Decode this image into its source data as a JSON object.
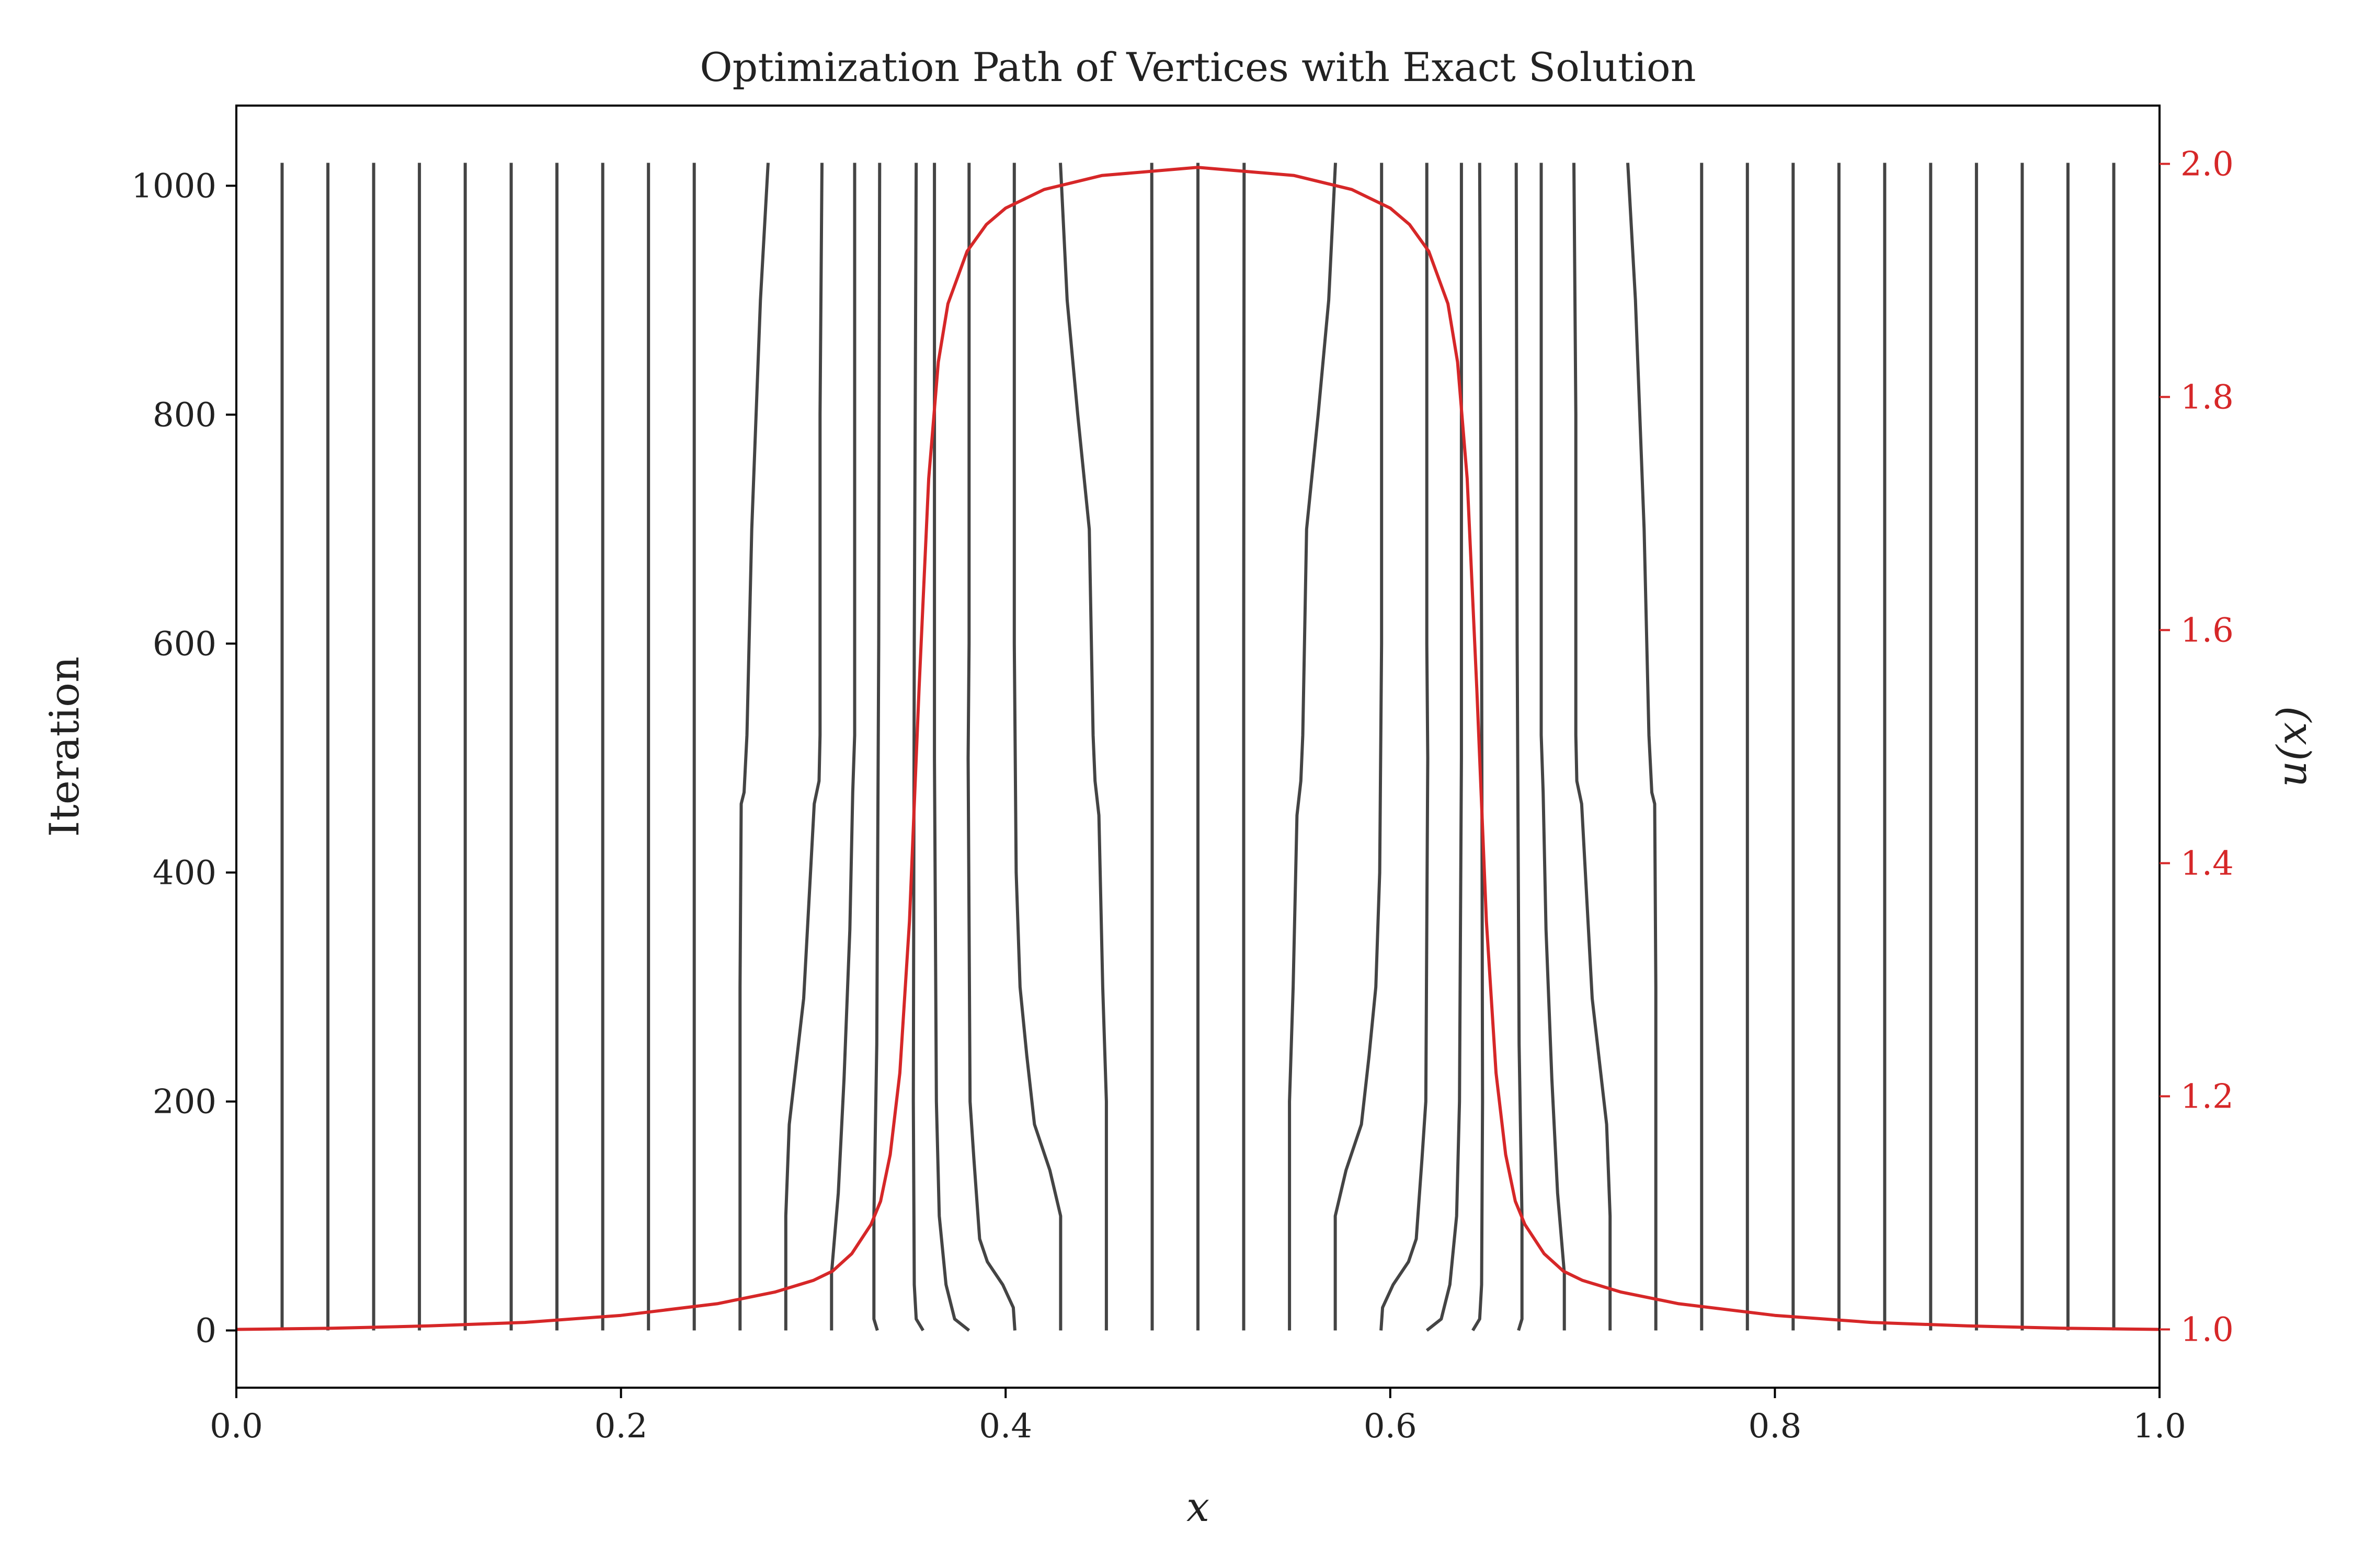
{
  "chart_data": {
    "type": "line",
    "title": "Optimization Path of Vertices with Exact Solution",
    "xlabel": "x",
    "ylabel_left": "Iteration",
    "ylabel_right": "u(x)",
    "xlim": [
      0.0,
      1.0
    ],
    "ylim_left": [
      -50,
      1070
    ],
    "ylim_right": [
      0.95,
      2.05
    ],
    "x_ticks": [
      0.0,
      0.2,
      0.4,
      0.6,
      0.8,
      1.0
    ],
    "x_tick_labels": [
      "0.0",
      "0.2",
      "0.4",
      "0.6",
      "0.8",
      "1.0"
    ],
    "y_ticks_left": [
      0,
      200,
      400,
      600,
      800,
      1000
    ],
    "y_tick_labels_left": [
      "0",
      "200",
      "400",
      "600",
      "800",
      "1000"
    ],
    "y_ticks_right": [
      1.0,
      1.2,
      1.4,
      1.6,
      1.8,
      2.0
    ],
    "y_tick_labels_right": [
      "1.0",
      "1.2",
      "1.4",
      "1.6",
      "1.8",
      "2.0"
    ],
    "grid": false,
    "legend": "none",
    "colors": {
      "vertex_paths": "#444444",
      "exact_solution": "#d62728",
      "axis": "#000000"
    },
    "vertex_paths": [
      {
        "points": [
          [
            0.0238,
            0
          ],
          [
            0.0238,
            1020
          ]
        ]
      },
      {
        "points": [
          [
            0.0476,
            0
          ],
          [
            0.0476,
            1020
          ]
        ]
      },
      {
        "points": [
          [
            0.0714,
            0
          ],
          [
            0.0714,
            1020
          ]
        ]
      },
      {
        "points": [
          [
            0.0952,
            0
          ],
          [
            0.0952,
            1020
          ]
        ]
      },
      {
        "points": [
          [
            0.119,
            0
          ],
          [
            0.119,
            1020
          ]
        ]
      },
      {
        "points": [
          [
            0.1429,
            0
          ],
          [
            0.1429,
            1020
          ]
        ]
      },
      {
        "points": [
          [
            0.1667,
            0
          ],
          [
            0.1667,
            1020
          ]
        ]
      },
      {
        "points": [
          [
            0.1905,
            0
          ],
          [
            0.1905,
            1020
          ]
        ]
      },
      {
        "points": [
          [
            0.2143,
            0
          ],
          [
            0.2143,
            1020
          ]
        ]
      },
      {
        "points": [
          [
            0.2381,
            0
          ],
          [
            0.2381,
            1020
          ]
        ]
      },
      {
        "points": [
          [
            0.2619,
            0
          ],
          [
            0.2619,
            300
          ],
          [
            0.2625,
            460
          ],
          [
            0.264,
            470
          ],
          [
            0.2655,
            520
          ],
          [
            0.268,
            700
          ],
          [
            0.2725,
            900
          ],
          [
            0.2765,
            1020
          ]
        ]
      },
      {
        "points": [
          [
            0.2857,
            0
          ],
          [
            0.2857,
            100
          ],
          [
            0.2875,
            180
          ],
          [
            0.295,
            290
          ],
          [
            0.3005,
            460
          ],
          [
            0.303,
            480
          ],
          [
            0.3035,
            520
          ],
          [
            0.3035,
            800
          ],
          [
            0.3045,
            1020
          ]
        ]
      },
      {
        "points": [
          [
            0.3095,
            0
          ],
          [
            0.3095,
            50
          ],
          [
            0.313,
            120
          ],
          [
            0.316,
            220
          ],
          [
            0.319,
            350
          ],
          [
            0.3205,
            470
          ],
          [
            0.3215,
            520
          ],
          [
            0.3215,
            1020
          ]
        ]
      },
      {
        "points": [
          [
            0.3333,
            0
          ],
          [
            0.3315,
            10
          ],
          [
            0.3315,
            100
          ],
          [
            0.333,
            250
          ],
          [
            0.334,
            600
          ],
          [
            0.3345,
            1020
          ]
        ]
      },
      {
        "points": [
          [
            0.3571,
            0
          ],
          [
            0.3535,
            10
          ],
          [
            0.3525,
            40
          ],
          [
            0.352,
            200
          ],
          [
            0.3525,
            600
          ],
          [
            0.3535,
            1020
          ]
        ]
      },
      {
        "points": [
          [
            0.381,
            0
          ],
          [
            0.3735,
            10
          ],
          [
            0.369,
            40
          ],
          [
            0.3655,
            100
          ],
          [
            0.364,
            200
          ],
          [
            0.363,
            500
          ],
          [
            0.363,
            1020
          ]
        ]
      },
      {
        "points": [
          [
            0.4048,
            0
          ],
          [
            0.404,
            20
          ],
          [
            0.3985,
            40
          ],
          [
            0.3905,
            60
          ],
          [
            0.3865,
            80
          ],
          [
            0.3835,
            150
          ],
          [
            0.3815,
            200
          ],
          [
            0.3805,
            500
          ],
          [
            0.381,
            600
          ],
          [
            0.381,
            1020
          ]
        ]
      },
      {
        "points": [
          [
            0.4286,
            0
          ],
          [
            0.4286,
            100
          ],
          [
            0.423,
            140
          ],
          [
            0.415,
            180
          ],
          [
            0.411,
            240
          ],
          [
            0.4075,
            300
          ],
          [
            0.4055,
            400
          ],
          [
            0.4045,
            600
          ],
          [
            0.4045,
            1020
          ]
        ]
      },
      {
        "points": [
          [
            0.4524,
            0
          ],
          [
            0.4524,
            200
          ],
          [
            0.4505,
            300
          ],
          [
            0.4485,
            450
          ],
          [
            0.4465,
            480
          ],
          [
            0.4455,
            520
          ],
          [
            0.4435,
            700
          ],
          [
            0.4375,
            800
          ],
          [
            0.432,
            900
          ],
          [
            0.4285,
            1020
          ]
        ]
      },
      {
        "points": [
          [
            0.4762,
            0
          ],
          [
            0.4762,
            600
          ],
          [
            0.476,
            1020
          ]
        ]
      },
      {
        "points": [
          [
            0.5,
            0
          ],
          [
            0.5,
            1020
          ]
        ]
      },
      {
        "points": [
          [
            0.5238,
            0
          ],
          [
            0.5238,
            600
          ],
          [
            0.524,
            1020
          ]
        ]
      },
      {
        "points": [
          [
            0.5476,
            0
          ],
          [
            0.5476,
            200
          ],
          [
            0.5495,
            300
          ],
          [
            0.5515,
            450
          ],
          [
            0.5535,
            480
          ],
          [
            0.5545,
            520
          ],
          [
            0.5565,
            700
          ],
          [
            0.5625,
            800
          ],
          [
            0.568,
            900
          ],
          [
            0.5715,
            1020
          ]
        ]
      },
      {
        "points": [
          [
            0.5714,
            0
          ],
          [
            0.5714,
            100
          ],
          [
            0.577,
            140
          ],
          [
            0.585,
            180
          ],
          [
            0.589,
            240
          ],
          [
            0.5925,
            300
          ],
          [
            0.5945,
            400
          ],
          [
            0.5955,
            600
          ],
          [
            0.5955,
            1020
          ]
        ]
      },
      {
        "points": [
          [
            0.5952,
            0
          ],
          [
            0.596,
            20
          ],
          [
            0.6015,
            40
          ],
          [
            0.6095,
            60
          ],
          [
            0.6135,
            80
          ],
          [
            0.6165,
            150
          ],
          [
            0.6185,
            200
          ],
          [
            0.6195,
            500
          ],
          [
            0.619,
            600
          ],
          [
            0.619,
            1020
          ]
        ]
      },
      {
        "points": [
          [
            0.619,
            0
          ],
          [
            0.6265,
            10
          ],
          [
            0.631,
            40
          ],
          [
            0.6345,
            100
          ],
          [
            0.636,
            200
          ],
          [
            0.637,
            500
          ],
          [
            0.637,
            1020
          ]
        ]
      },
      {
        "points": [
          [
            0.6429,
            0
          ],
          [
            0.6465,
            10
          ],
          [
            0.6475,
            40
          ],
          [
            0.648,
            200
          ],
          [
            0.6475,
            600
          ],
          [
            0.6465,
            1020
          ]
        ]
      },
      {
        "points": [
          [
            0.6667,
            0
          ],
          [
            0.6685,
            10
          ],
          [
            0.6685,
            100
          ],
          [
            0.667,
            250
          ],
          [
            0.666,
            600
          ],
          [
            0.6655,
            1020
          ]
        ]
      },
      {
        "points": [
          [
            0.6905,
            0
          ],
          [
            0.6905,
            50
          ],
          [
            0.687,
            120
          ],
          [
            0.684,
            220
          ],
          [
            0.681,
            350
          ],
          [
            0.6795,
            470
          ],
          [
            0.6785,
            520
          ],
          [
            0.6785,
            1020
          ]
        ]
      },
      {
        "points": [
          [
            0.7143,
            0
          ],
          [
            0.7143,
            100
          ],
          [
            0.7125,
            180
          ],
          [
            0.705,
            290
          ],
          [
            0.6995,
            460
          ],
          [
            0.697,
            480
          ],
          [
            0.6965,
            520
          ],
          [
            0.6965,
            800
          ],
          [
            0.6955,
            1020
          ]
        ]
      },
      {
        "points": [
          [
            0.7381,
            0
          ],
          [
            0.7381,
            300
          ],
          [
            0.7375,
            460
          ],
          [
            0.736,
            470
          ],
          [
            0.7345,
            520
          ],
          [
            0.732,
            700
          ],
          [
            0.7275,
            900
          ],
          [
            0.7235,
            1020
          ]
        ]
      },
      {
        "points": [
          [
            0.7619,
            0
          ],
          [
            0.7619,
            1020
          ]
        ]
      },
      {
        "points": [
          [
            0.7857,
            0
          ],
          [
            0.7857,
            1020
          ]
        ]
      },
      {
        "points": [
          [
            0.8095,
            0
          ],
          [
            0.8095,
            1020
          ]
        ]
      },
      {
        "points": [
          [
            0.8333,
            0
          ],
          [
            0.8333,
            1020
          ]
        ]
      },
      {
        "points": [
          [
            0.8571,
            0
          ],
          [
            0.8571,
            1020
          ]
        ]
      },
      {
        "points": [
          [
            0.881,
            0
          ],
          [
            0.881,
            1020
          ]
        ]
      },
      {
        "points": [
          [
            0.9048,
            0
          ],
          [
            0.9048,
            1020
          ]
        ]
      },
      {
        "points": [
          [
            0.9286,
            0
          ],
          [
            0.9286,
            1020
          ]
        ]
      },
      {
        "points": [
          [
            0.9524,
            0
          ],
          [
            0.9524,
            1020
          ]
        ]
      },
      {
        "points": [
          [
            0.9762,
            0
          ],
          [
            0.9762,
            1020
          ]
        ]
      }
    ],
    "exact_solution": {
      "points": [
        [
          0.0,
          1.0
        ],
        [
          0.05,
          1.001
        ],
        [
          0.1,
          1.003
        ],
        [
          0.15,
          1.006
        ],
        [
          0.2,
          1.012
        ],
        [
          0.25,
          1.022
        ],
        [
          0.28,
          1.032
        ],
        [
          0.3,
          1.042
        ],
        [
          0.31,
          1.05
        ],
        [
          0.32,
          1.065
        ],
        [
          0.33,
          1.09
        ],
        [
          0.335,
          1.11
        ],
        [
          0.34,
          1.15
        ],
        [
          0.345,
          1.22
        ],
        [
          0.35,
          1.35
        ],
        [
          0.355,
          1.55
        ],
        [
          0.36,
          1.73
        ],
        [
          0.365,
          1.83
        ],
        [
          0.37,
          1.88
        ],
        [
          0.38,
          1.925
        ],
        [
          0.39,
          1.948
        ],
        [
          0.4,
          1.962
        ],
        [
          0.42,
          1.978
        ],
        [
          0.45,
          1.99
        ],
        [
          0.5,
          1.997
        ],
        [
          0.55,
          1.99
        ],
        [
          0.58,
          1.978
        ],
        [
          0.6,
          1.962
        ],
        [
          0.61,
          1.948
        ],
        [
          0.62,
          1.925
        ],
        [
          0.63,
          1.88
        ],
        [
          0.635,
          1.83
        ],
        [
          0.64,
          1.73
        ],
        [
          0.645,
          1.55
        ],
        [
          0.65,
          1.35
        ],
        [
          0.655,
          1.22
        ],
        [
          0.66,
          1.15
        ],
        [
          0.665,
          1.11
        ],
        [
          0.67,
          1.09
        ],
        [
          0.68,
          1.065
        ],
        [
          0.69,
          1.05
        ],
        [
          0.7,
          1.042
        ],
        [
          0.72,
          1.032
        ],
        [
          0.75,
          1.022
        ],
        [
          0.8,
          1.012
        ],
        [
          0.85,
          1.006
        ],
        [
          0.9,
          1.003
        ],
        [
          0.95,
          1.001
        ],
        [
          1.0,
          1.0
        ]
      ]
    }
  }
}
